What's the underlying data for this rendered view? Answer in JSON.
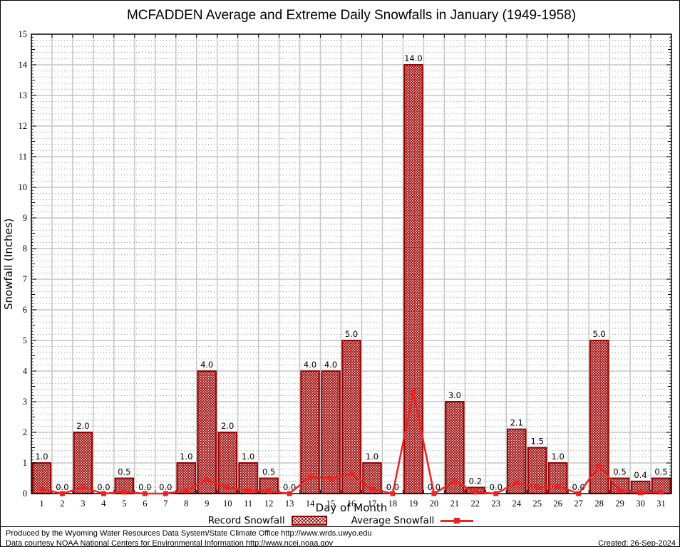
{
  "page": {
    "footer": {
      "line1": "Produced by the Wyoming Water Resources Data System/State Climate Office http://www.wrds.uwyo.edu",
      "line2": "Data courtesy NOAA National Centers for Environmental Information http://www.ncei.noaa.gov",
      "created": "Created: 26-Sep-2024"
    }
  },
  "chart_data": {
    "type": "bar",
    "title": "MCFADDEN Average and Extreme Daily Snowfalls in January (1949-1958)",
    "xlabel": "Day of Month",
    "ylabel": "Snowfall (Inches)",
    "ylim": [
      0,
      15
    ],
    "ytick_step": 1,
    "grid": true,
    "legend_position": "bottom",
    "categories": [
      1,
      2,
      3,
      4,
      5,
      6,
      7,
      8,
      9,
      10,
      11,
      12,
      13,
      14,
      15,
      16,
      17,
      18,
      19,
      20,
      21,
      22,
      23,
      24,
      25,
      26,
      27,
      28,
      29,
      30,
      31
    ],
    "series": [
      {
        "name": "Record Snowfall",
        "type": "bar",
        "color": "#990000",
        "values": [
          1.0,
          0.0,
          2.0,
          0.0,
          0.5,
          0.0,
          0.0,
          1.0,
          4.0,
          2.0,
          1.0,
          0.5,
          0.0,
          4.0,
          4.0,
          5.0,
          1.0,
          0.0,
          14.0,
          0.0,
          3.0,
          0.2,
          0.0,
          2.1,
          1.5,
          1.0,
          0.0,
          5.0,
          0.5,
          0.4,
          0.5
        ],
        "value_labels": [
          "1.0",
          "0.0",
          "2.0",
          "0.0",
          "0.5",
          "0.0",
          "0.0",
          "1.0",
          "4.0",
          "2.0",
          "1.0",
          "0.5",
          "0.0",
          "4.0",
          "4.0",
          "5.0",
          "1.0",
          "0.0",
          "14.0",
          "0.0",
          "3.0",
          "0.2",
          "0.0",
          "2.1",
          "1.5",
          "1.0",
          "0.0",
          "5.0",
          "0.5",
          "0.4",
          "0.5"
        ]
      },
      {
        "name": "Average Snowfall",
        "type": "line",
        "color": "#ee2222",
        "values": [
          0.15,
          0.0,
          0.2,
          0.0,
          0.05,
          0.0,
          0.0,
          0.1,
          0.45,
          0.2,
          0.1,
          0.08,
          0.0,
          0.55,
          0.5,
          0.65,
          0.15,
          0.0,
          3.3,
          0.0,
          0.4,
          0.05,
          0.0,
          0.35,
          0.2,
          0.25,
          0.0,
          0.9,
          0.1,
          0.03,
          0.05
        ]
      }
    ],
    "colors": {
      "grid_major": "#c6c6c6",
      "grid_minor": "#9a9a9a",
      "frame": "#000000"
    }
  }
}
